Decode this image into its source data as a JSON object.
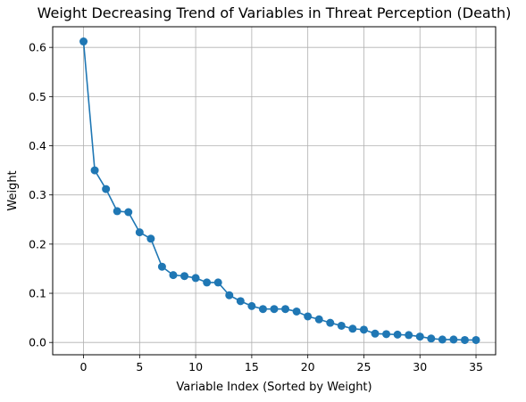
{
  "chart_data": {
    "type": "line",
    "title": "Weight Decreasing Trend of Variables in Threat Perception (Death)",
    "xlabel": "Variable Index (Sorted by Weight)",
    "ylabel": "Weight",
    "xlim": [
      -2.75,
      36.75
    ],
    "ylim": [
      -0.025,
      0.642
    ],
    "xticks": [
      0,
      5,
      10,
      15,
      20,
      25,
      30,
      35
    ],
    "yticks": [
      0.0,
      0.1,
      0.2,
      0.3,
      0.4,
      0.5,
      0.6
    ],
    "grid": true,
    "color": "#1f77b4",
    "series": [
      {
        "x": [
          0,
          1,
          2,
          3,
          4,
          5,
          6,
          7,
          8,
          9,
          10,
          11,
          12,
          13,
          14,
          15,
          16,
          17,
          18,
          19,
          20,
          21,
          22,
          23,
          24,
          25,
          26,
          27,
          28,
          29,
          30,
          31,
          32,
          33,
          34,
          35
        ],
        "values": [
          0.612,
          0.35,
          0.312,
          0.267,
          0.265,
          0.224,
          0.211,
          0.154,
          0.137,
          0.135,
          0.131,
          0.122,
          0.122,
          0.096,
          0.084,
          0.074,
          0.068,
          0.068,
          0.068,
          0.063,
          0.053,
          0.047,
          0.04,
          0.034,
          0.028,
          0.026,
          0.018,
          0.017,
          0.016,
          0.015,
          0.012,
          0.008,
          0.006,
          0.006,
          0.005,
          0.005
        ]
      }
    ]
  }
}
